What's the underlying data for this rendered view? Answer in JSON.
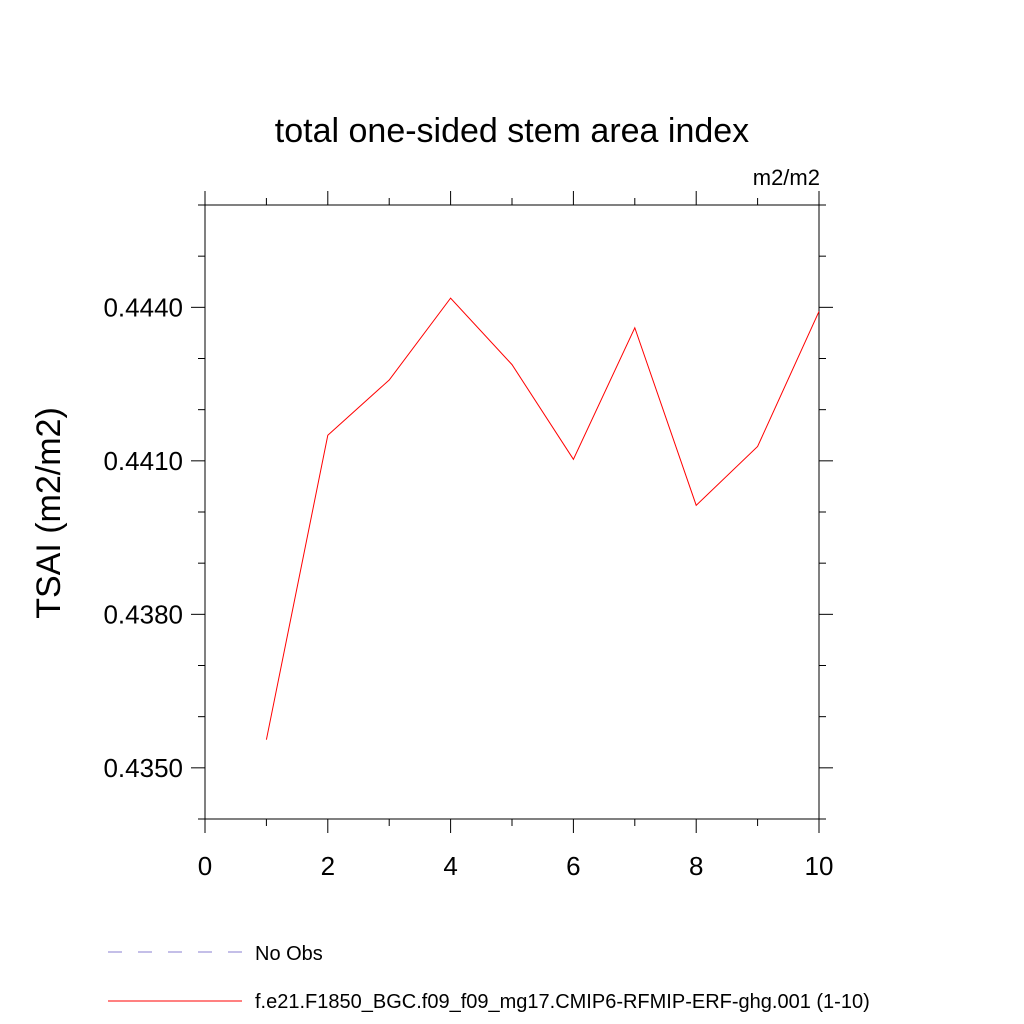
{
  "chart_data": {
    "type": "line",
    "title": "total one-sided stem area index",
    "units_label": "m2/m2",
    "ylabel": "TSAI  (m2/m2)",
    "xlabel": "",
    "xlim": [
      0,
      10
    ],
    "ylim": [
      0.434,
      0.446
    ],
    "x_ticks": [
      0,
      2,
      4,
      6,
      8,
      10
    ],
    "x_tick_labels": [
      "0",
      "2",
      "4",
      "6",
      "8",
      "10"
    ],
    "y_ticks": [
      0.435,
      0.438,
      0.441,
      0.444
    ],
    "y_tick_labels": [
      "0.4350",
      "0.4380",
      "0.4410",
      "0.4440"
    ],
    "x_minor_step": 1,
    "y_minor_step": 0.001,
    "grid": false,
    "legend_position": "bottom",
    "series": [
      {
        "name": "f.e21.F1850_BGC.f09_f09_mg17.CMIP6-RFMIP-ERF-ghg.001 (1-10)",
        "color": "#ff0000",
        "dash": "solid",
        "x": [
          1,
          2,
          3,
          4,
          5,
          6,
          7,
          8,
          9,
          10
        ],
        "y": [
          0.43555,
          0.4415,
          0.44258,
          0.44418,
          0.44288,
          0.44103,
          0.4436,
          0.44013,
          0.44128,
          0.44392
        ]
      }
    ],
    "legend": [
      {
        "label": "No Obs",
        "color": "#8a7fd0",
        "dash": "dashed"
      },
      {
        "label": "f.e21.F1850_BGC.f09_f09_mg17.CMIP6-RFMIP-ERF-ghg.001 (1-10)",
        "color": "#ff0000",
        "dash": "solid"
      }
    ]
  }
}
